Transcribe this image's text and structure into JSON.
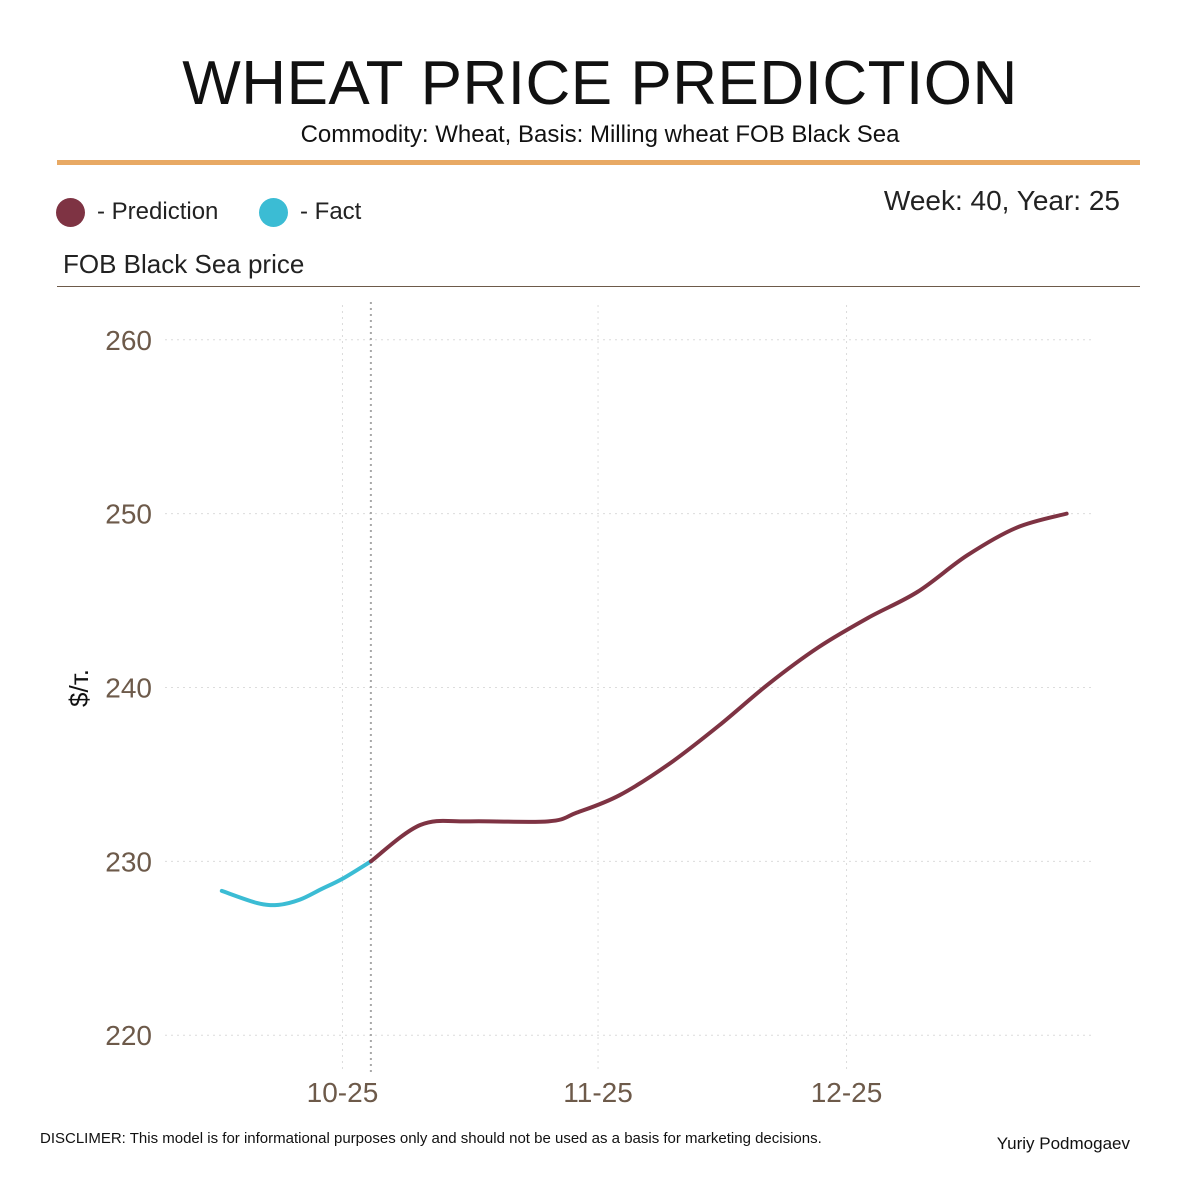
{
  "header": {
    "title": "WHEAT PRICE PREDICTION",
    "subtitle": "Commodity: Wheat, Basis: Milling wheat FOB Black Sea",
    "week_info": "Week: 40, Year: 25"
  },
  "legend": {
    "items": [
      {
        "label": "- Prediction",
        "color": "#7e3343"
      },
      {
        "label": "- Fact",
        "color": "#3bbcd4"
      }
    ]
  },
  "section": {
    "title": "FOB Black Sea price"
  },
  "footer": {
    "disclaimer": "DISCLIMER:  This model is for informational purposes only and should not be used as a basis for marketing decisions.",
    "author": "Yuriy Podmogaev"
  },
  "colors": {
    "accent_rule": "#e8a964",
    "prediction": "#7e3343",
    "fact": "#3bbcd4",
    "tick_text": "#6d5a4a",
    "grid": "#d9d9d9"
  },
  "chart_data": {
    "type": "line",
    "title": "FOB Black Sea price",
    "xlabel": "",
    "ylabel": "$/т.",
    "x_unit": "days from 2025-09-01",
    "xlim": [
      -8,
      123
    ],
    "ylim": [
      218,
      262
    ],
    "yticks": [
      220,
      230,
      240,
      250,
      260
    ],
    "xticks": [
      {
        "value": 17,
        "label": "10-25"
      },
      {
        "value": 53,
        "label": "11-25"
      },
      {
        "value": 88,
        "label": "12-25"
      }
    ],
    "current_marker_x": 21,
    "grid": true,
    "legend": "top-left",
    "series": [
      {
        "name": "Fact",
        "color": "#3bbcd4",
        "x": [
          0,
          5,
          8,
          11,
          14,
          17,
          21
        ],
        "y": [
          228.3,
          227.6,
          227.5,
          227.8,
          228.4,
          229.0,
          230.0
        ]
      },
      {
        "name": "Prediction",
        "color": "#7e3343",
        "x": [
          21,
          28,
          35,
          46,
          50,
          56,
          63,
          70,
          77,
          84,
          91,
          98,
          105,
          112,
          119
        ],
        "y": [
          230.0,
          232.1,
          232.3,
          232.3,
          232.8,
          233.8,
          235.6,
          237.8,
          240.2,
          242.3,
          244.0,
          245.5,
          247.6,
          249.2,
          250.0
        ]
      }
    ]
  }
}
